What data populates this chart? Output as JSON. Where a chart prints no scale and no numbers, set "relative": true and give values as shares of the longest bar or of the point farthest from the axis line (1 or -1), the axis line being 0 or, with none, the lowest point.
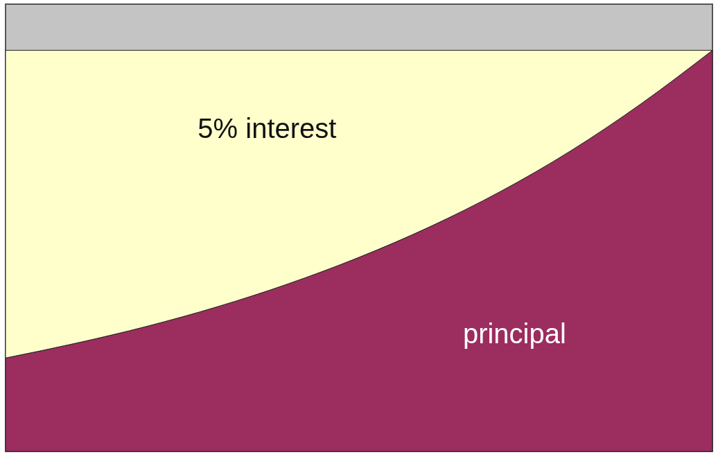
{
  "chart_data": {
    "type": "area",
    "relative": true,
    "stacked": true,
    "categories": [
      null,
      null,
      null,
      null,
      null,
      null,
      null,
      null,
      null,
      null,
      null
    ],
    "series": [
      {
        "name": "principal",
        "color": "#9b2d5f",
        "values": [
          0.233,
          0.27,
          0.312,
          0.361,
          0.418,
          0.484,
          0.56,
          0.648,
          0.75,
          0.868,
          1.0
        ]
      },
      {
        "name": "5% interest",
        "color": "#ffffcc",
        "values": [
          0.767,
          0.73,
          0.688,
          0.639,
          0.582,
          0.516,
          0.44,
          0.352,
          0.25,
          0.132,
          0.0
        ]
      }
    ]
  }
}
